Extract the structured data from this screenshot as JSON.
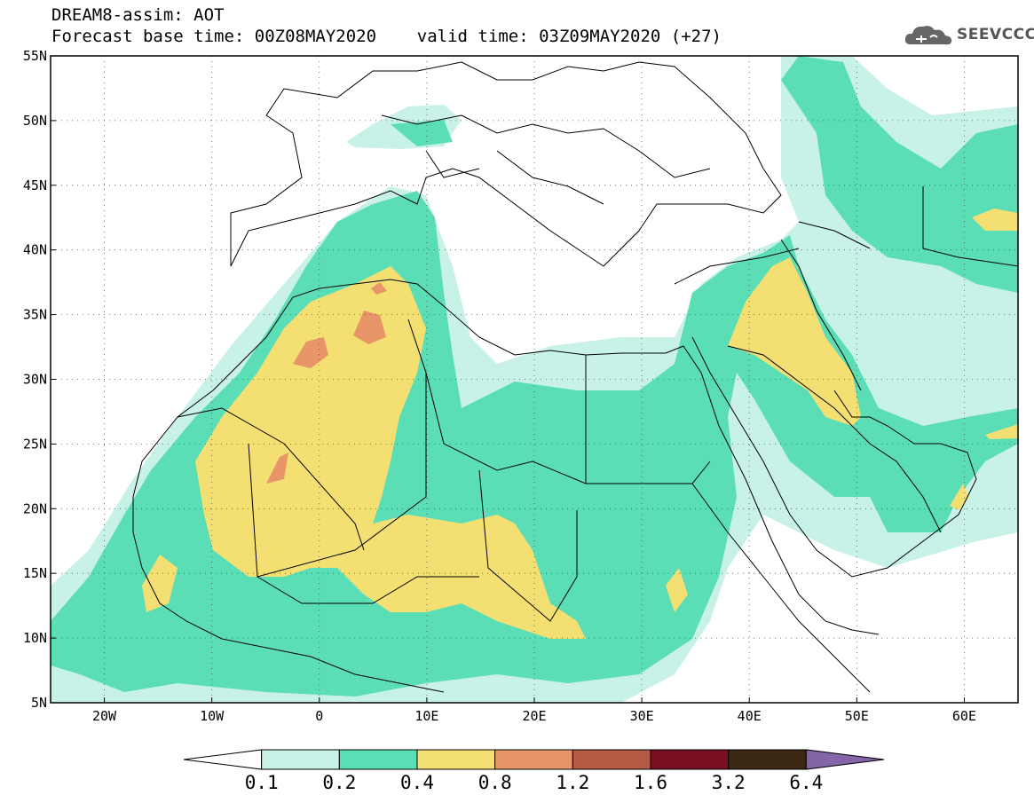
{
  "header": {
    "line1": "DREAM8-assim: AOT",
    "line2": "Forecast base time: 00Z08MAY2020    valid time: 03Z09MAY2020 (+27)"
  },
  "logo": {
    "text": "SEEVCCC",
    "icon": "cloud-icon"
  },
  "map": {
    "lon_range": [
      -25,
      65
    ],
    "lat_range": [
      5,
      55
    ],
    "lat_ticks": [
      {
        "lat": 55,
        "label": "55N"
      },
      {
        "lat": 50,
        "label": "50N"
      },
      {
        "lat": 45,
        "label": "45N"
      },
      {
        "lat": 40,
        "label": "40N"
      },
      {
        "lat": 35,
        "label": "35N"
      },
      {
        "lat": 30,
        "label": "30N"
      },
      {
        "lat": 25,
        "label": "25N"
      },
      {
        "lat": 20,
        "label": "20N"
      },
      {
        "lat": 15,
        "label": "15N"
      },
      {
        "lat": 10,
        "label": "10N"
      },
      {
        "lat": 5,
        "label": "5N"
      }
    ],
    "lon_ticks": [
      {
        "lon": -20,
        "label": "20W"
      },
      {
        "lon": -10,
        "label": "10W"
      },
      {
        "lon": 0,
        "label": "0"
      },
      {
        "lon": 10,
        "label": "10E"
      },
      {
        "lon": 20,
        "label": "20E"
      },
      {
        "lon": 30,
        "label": "30E"
      },
      {
        "lon": 40,
        "label": "40E"
      },
      {
        "lon": 50,
        "label": "50E"
      },
      {
        "lon": 60,
        "label": "60E"
      }
    ]
  },
  "colorbar": {
    "colors": [
      "#ffffff",
      "#c8f1e8",
      "#5bdeb6",
      "#f4e072",
      "#e9956a",
      "#b55a45",
      "#7a0e22",
      "#3d2816",
      "#8466a6"
    ],
    "labels": [
      "0.1",
      "0.2",
      "0.4",
      "0.8",
      "1.2",
      "1.6",
      "3.2",
      "6.4"
    ]
  }
}
